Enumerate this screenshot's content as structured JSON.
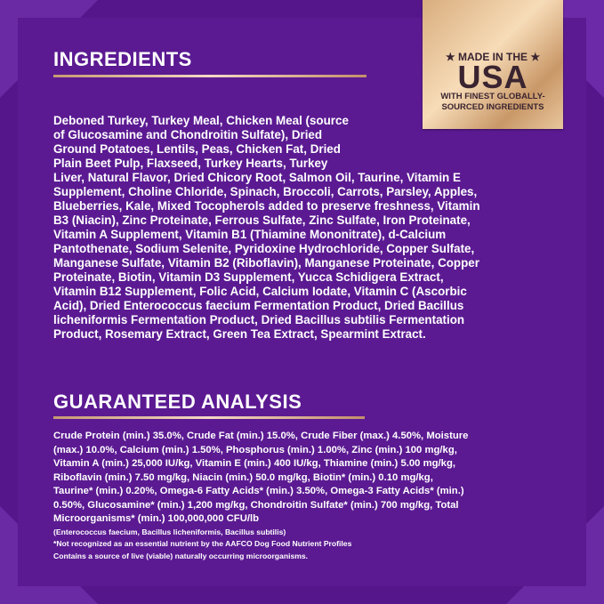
{
  "colors": {
    "background": "#54168a",
    "accent_gold": "#d9ad7e",
    "text": "#ffffff"
  },
  "badge": {
    "line1": "★ MADE IN THE ★",
    "line2": "USA",
    "line3": "WITH FINEST GLOBALLY-",
    "line4": "SOURCED INGREDIENTS"
  },
  "ingredients": {
    "title": "INGREDIENTS",
    "lines": [
      "Deboned Turkey, Turkey Meal, Chicken Meal (source",
      "of Glucosamine and Chondroitin Sulfate), Dried",
      "Ground Potatoes, Lentils, Peas, Chicken Fat, Dried",
      "Plain Beet Pulp, Flaxseed, Turkey Hearts, Turkey",
      "Liver, Natural Flavor, Dried Chicory Root, Salmon Oil, Taurine, Vitamin E",
      "Supplement, Choline Chloride, Spinach, Broccoli, Carrots, Parsley, Apples,",
      "Blueberries, Kale, Mixed Tocopherols added to preserve freshness, Vitamin",
      "B3 (Niacin), Zinc Proteinate, Ferrous Sulfate, Zinc Sulfate, Iron Proteinate,",
      "Vitamin A Supplement, Vitamin B1 (Thiamine Mononitrate), d-Calcium",
      "Pantothenate, Sodium Selenite, Pyridoxine Hydrochloride, Copper Sulfate,",
      "Manganese Sulfate, Vitamin B2 (Riboflavin), Manganese Proteinate, Copper",
      "Proteinate, Biotin, Vitamin D3 Supplement, Yucca Schidigera Extract,",
      "Vitamin B12 Supplement, Folic Acid, Calcium Iodate, Vitamin C (Ascorbic",
      "Acid), Dried Enterococcus faecium Fermentation Product, Dried Bacillus",
      "licheniformis Fermentation Product, Dried Bacillus subtilis Fermentation",
      "Product, Rosemary Extract, Green Tea Extract, Spearmint Extract."
    ]
  },
  "analysis": {
    "title": "GUARANTEED ANALYSIS",
    "lines": [
      "Crude Protein (min.) 35.0%, Crude Fat (min.) 15.0%, Crude Fiber (max.) 4.50%, Moisture",
      "(max.) 10.0%, Calcium (min.) 1.50%, Phosphorus (min.) 1.00%, Zinc (min.) 100 mg/kg,",
      "Vitamin A (min.) 25,000 IU/kg, Vitamin E (min.) 400 IU/kg, Thiamine (min.) 5.00 mg/kg,",
      "Riboflavin (min.) 7.50 mg/kg, Niacin (min.) 50.0 mg/kg, Biotin* (min.) 0.10 mg/kg,",
      "Taurine* (min.) 0.20%, Omega-6 Fatty Acids* (min.) 3.50%, Omega-3 Fatty Acids* (min.)",
      "0.50%, Glucosamine* (min.) 1,200 mg/kg, Chondroitin Sulfate* (min.) 700 mg/kg, Total",
      "Microorganisms* (min.) 100,000,000 CFU/lb"
    ],
    "notes": [
      "(Enterococcus faecium, Bacillus licheniformis, Bacillus subtilis)",
      "*Not recognized as an essential nutrient by the AAFCO Dog Food Nutrient Profiles",
      "Contains a source of live (viable) naturally occurring microorganisms."
    ]
  }
}
